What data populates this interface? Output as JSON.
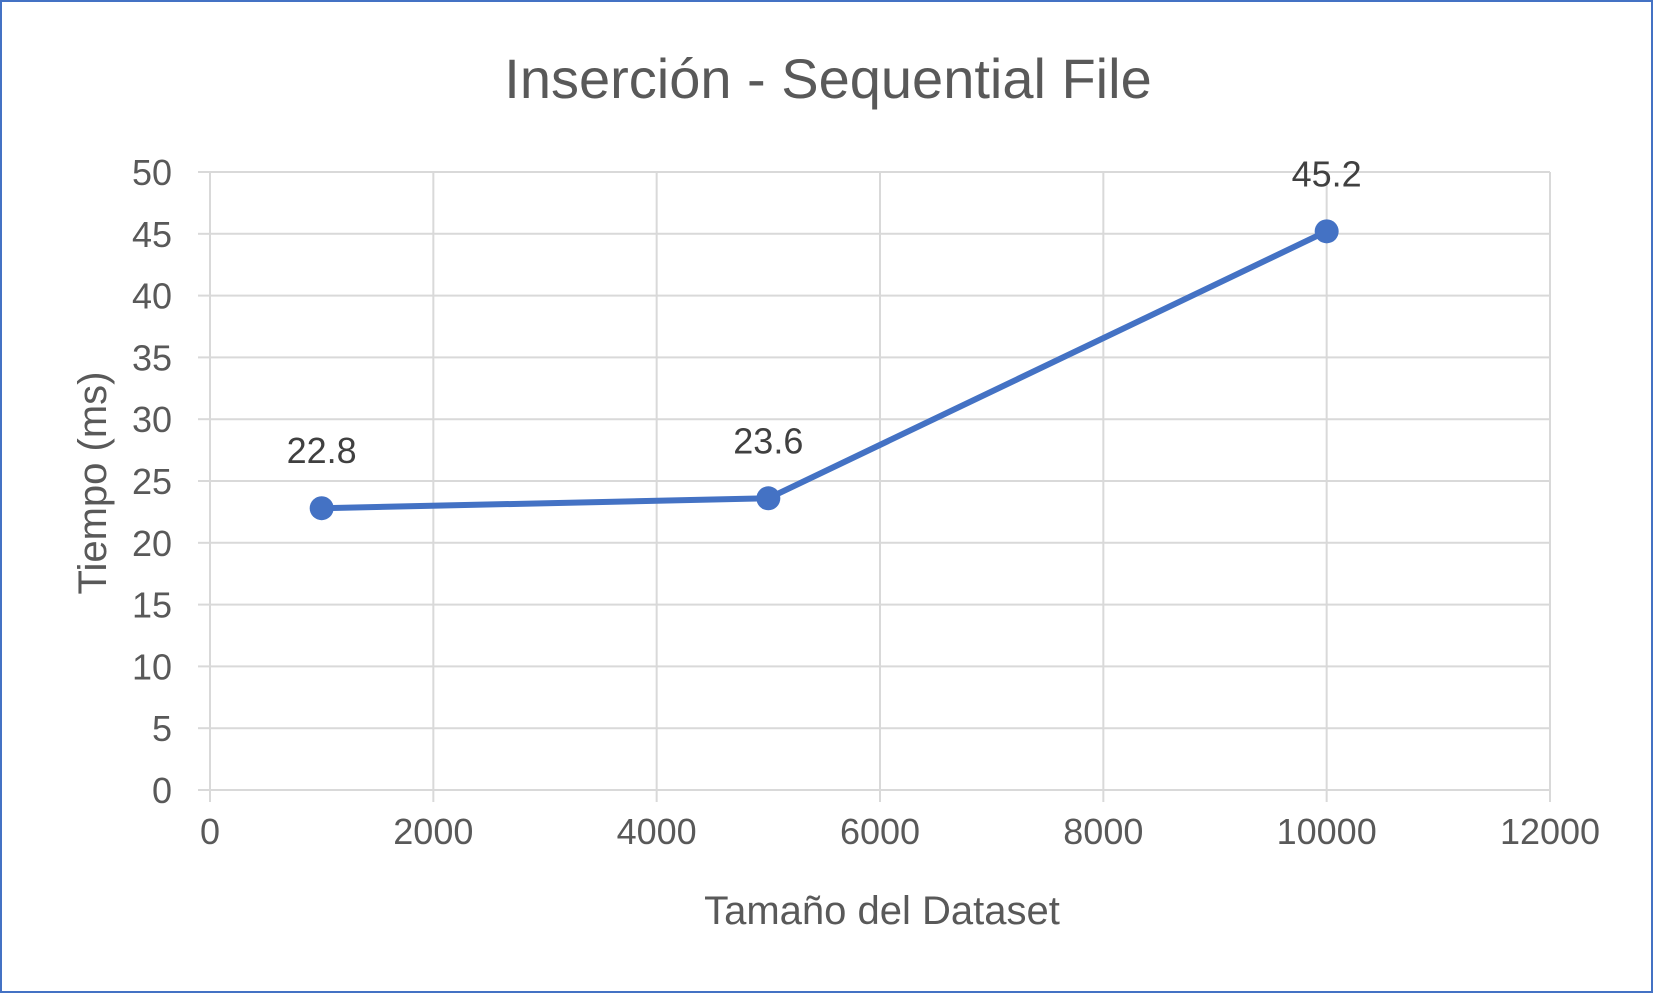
{
  "chart_data": {
    "type": "scatter",
    "mode": "lines+markers",
    "title": "Inserción - Sequential File",
    "xlabel": "Tamaño del Dataset",
    "ylabel": "Tiempo (ms)",
    "xlim": [
      0,
      12000
    ],
    "ylim": [
      0,
      50
    ],
    "xticks": [
      0,
      2000,
      4000,
      6000,
      8000,
      10000,
      12000
    ],
    "yticks": [
      0,
      5,
      10,
      15,
      20,
      25,
      30,
      35,
      40,
      45,
      50
    ],
    "grid": true,
    "legend": "none",
    "series": [
      {
        "color": "#4472c4",
        "points": [
          {
            "x": 1000,
            "y": 22.8,
            "label": "22.8"
          },
          {
            "x": 5000,
            "y": 23.6,
            "label": "23.6"
          },
          {
            "x": 10000,
            "y": 45.2,
            "label": "45.2"
          }
        ]
      }
    ]
  },
  "colors": {
    "series": "#4472c4",
    "grid": "#d9d9d9",
    "text": "#595959",
    "border": "#4472c4"
  }
}
